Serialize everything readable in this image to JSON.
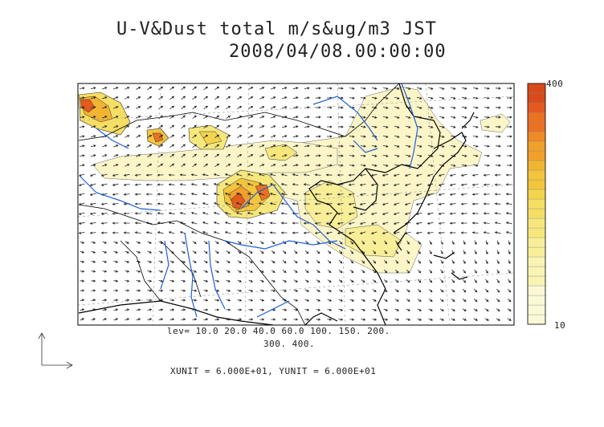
{
  "title": {
    "line1": "U-V&Dust total m/s&ug/m3 JST",
    "line2": "2008/04/08.00:00:00"
  },
  "contour_levels": {
    "line1": "lev= 10.0 20.0 40.0 60.0 100. 150. 200.",
    "line2": "300. 400.",
    "values": [
      10,
      20,
      40,
      60,
      100,
      150,
      200,
      300,
      400
    ]
  },
  "colorbar": {
    "top_label": "400",
    "bottom_label": "10"
  },
  "units": "XUNIT = 6.000E+01, YUNIT = 6.000E+01",
  "colors": {
    "land_border": "#000000",
    "rivers": "#1f5fd6",
    "dust_scale": [
      "#fbf8d6",
      "#f9f3b4",
      "#f8ee98",
      "#f6e77c",
      "#f5de64",
      "#f4d44e",
      "#f3c53e",
      "#f2b433",
      "#f1a02c",
      "#ee8a27",
      "#eb7123",
      "#e45a1f",
      "#d94a1b"
    ]
  }
}
